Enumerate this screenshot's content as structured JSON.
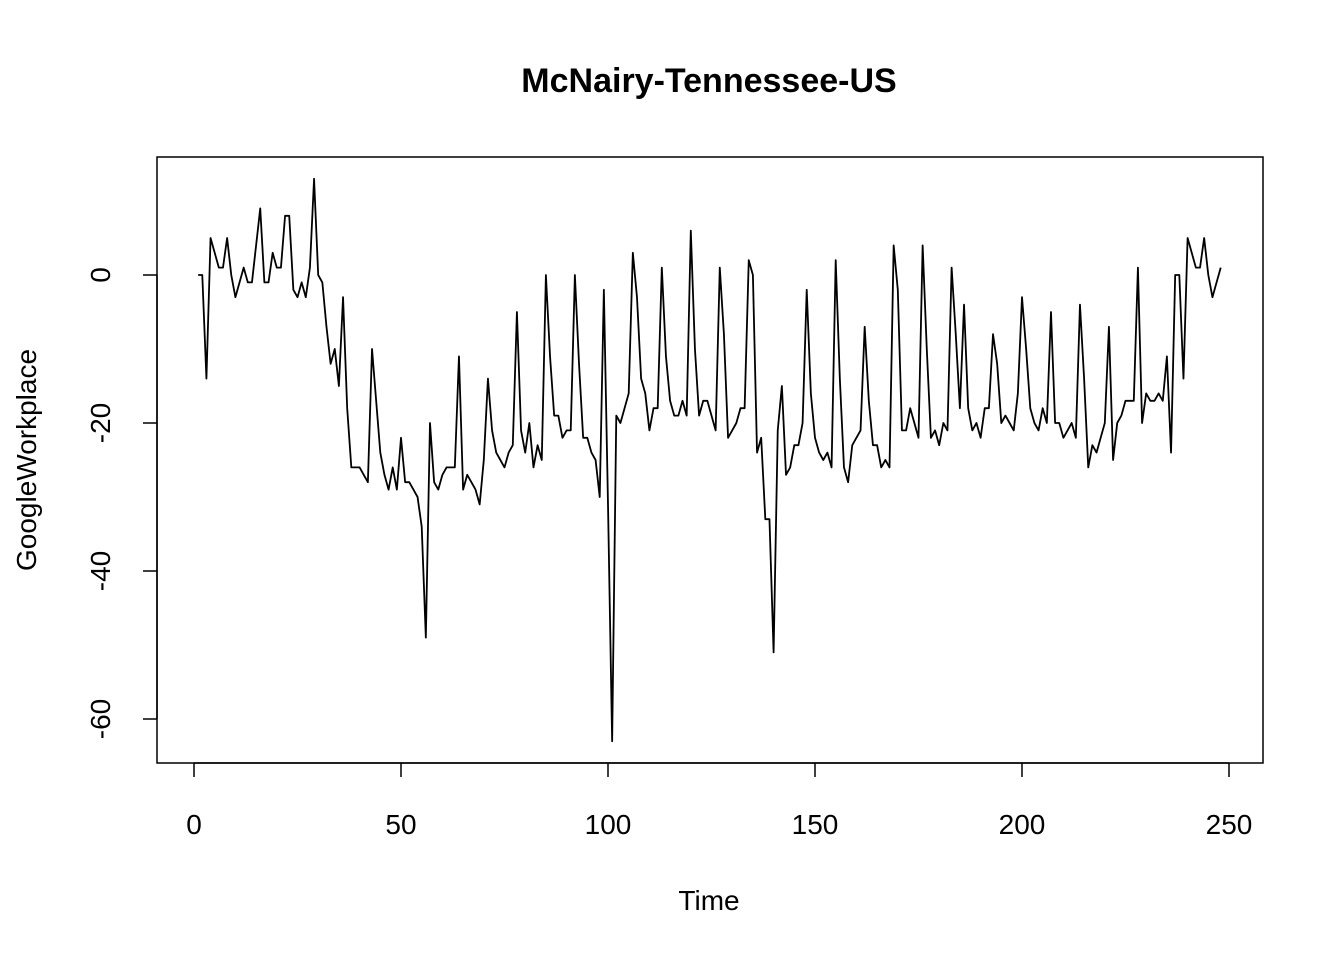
{
  "chart_data": {
    "type": "line",
    "title": "McNairy-Tennessee-US",
    "xlabel": "Time",
    "ylabel": "GoogleWorkplace",
    "xlim": [
      0,
      250
    ],
    "ylim": [
      -63,
      13
    ],
    "x_ticks": [
      0,
      50,
      100,
      150,
      200,
      250
    ],
    "y_ticks": [
      0,
      -20,
      -40,
      -60
    ],
    "grid": false,
    "legend": "none",
    "line_color": "#000000",
    "series": [
      {
        "x_start": 1,
        "values": [
          0,
          0,
          -14,
          5,
          3,
          1,
          1,
          5,
          0,
          -3,
          -1,
          1,
          -1,
          -1,
          4,
          9,
          -1,
          -1,
          3,
          1,
          1,
          8,
          8,
          -2,
          -3,
          -1,
          -3,
          1,
          13,
          0,
          -1,
          -7,
          -12,
          -10,
          -15,
          -3,
          -18,
          -26,
          -26,
          -26,
          -27,
          -28,
          -10,
          -17,
          -24,
          -27,
          -29,
          -26,
          -29,
          -22,
          -28,
          -28,
          -29,
          -30,
          -34,
          -49,
          -20,
          -28,
          -29,
          -27,
          -26,
          -26,
          -26,
          -11,
          -29,
          -27,
          -28,
          -29,
          -31,
          -25,
          -14,
          -21,
          -24,
          -25,
          -26,
          -24,
          -23,
          -5,
          -21,
          -24,
          -20,
          -26,
          -23,
          -25,
          0,
          -11,
          -19,
          -19,
          -22,
          -21,
          -21,
          0,
          -12,
          -22,
          -22,
          -24,
          -25,
          -30,
          -2,
          -31,
          -63,
          -19,
          -20,
          -18,
          -16,
          3,
          -3,
          -14,
          -16,
          -21,
          -18,
          -18,
          1,
          -11,
          -17,
          -19,
          -19,
          -17,
          -19,
          6,
          -10,
          -19,
          -17,
          -17,
          -19,
          -21,
          1,
          -8,
          -22,
          -21,
          -20,
          -18,
          -18,
          2,
          0,
          -24,
          -22,
          -33,
          -33,
          -51,
          -21,
          -15,
          -27,
          -26,
          -23,
          -23,
          -20,
          -2,
          -16,
          -22,
          -24,
          -25,
          -24,
          -26,
          2,
          -14,
          -26,
          -28,
          -23,
          -22,
          -21,
          -7,
          -17,
          -23,
          -23,
          -26,
          -25,
          -26,
          4,
          -2,
          -21,
          -21,
          -18,
          -20,
          -22,
          4,
          -10,
          -22,
          -21,
          -23,
          -20,
          -21,
          1,
          -8,
          -18,
          -4,
          -18,
          -21,
          -20,
          -22,
          -18,
          -18,
          -8,
          -12,
          -20,
          -19,
          -20,
          -21,
          -16,
          -3,
          -10,
          -18,
          -20,
          -21,
          -18,
          -20,
          -5,
          -20,
          -20,
          -22,
          -21,
          -20,
          -22,
          -4,
          -14,
          -26,
          -23,
          -24,
          -22,
          -20,
          -7,
          -25,
          -20,
          -19,
          -17,
          -17,
          -17,
          1,
          -20,
          -16,
          -17,
          -17,
          -16,
          -17,
          -11,
          -24,
          0,
          0,
          -14,
          5,
          3,
          1,
          1,
          5,
          0,
          -3,
          -1,
          1
        ]
      }
    ]
  }
}
